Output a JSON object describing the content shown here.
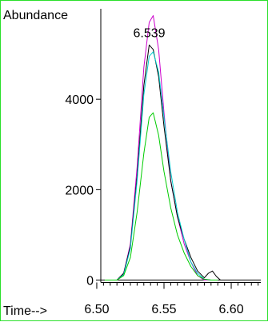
{
  "chart_data": {
    "type": "line",
    "ylabel": "Abundance",
    "xlabel": "Time-->",
    "xlim": [
      6.503,
      6.622
    ],
    "ylim": [
      -150,
      6000
    ],
    "yticks": [
      0,
      2000,
      4000
    ],
    "ytick_labels": [
      "0",
      "2000",
      "4000"
    ],
    "xticks": [
      6.5,
      6.55,
      6.6
    ],
    "xtick_labels": [
      "6.50",
      "6.55",
      "6.60"
    ],
    "x_minor_step": 0.005,
    "grid": false,
    "annotations": [
      {
        "text": "6.539",
        "x": 6.539,
        "y": 5300
      }
    ],
    "series": [
      {
        "color": "#cc00cc",
        "x": [
          6.506,
          6.515,
          6.52,
          6.525,
          6.53,
          6.535,
          6.539,
          6.542,
          6.546,
          6.55,
          6.555,
          6.56,
          6.565,
          6.57,
          6.575,
          6.58,
          6.585,
          6.59
        ],
        "y": [
          0,
          0,
          150,
          800,
          2500,
          4700,
          5700,
          5850,
          5100,
          3700,
          2200,
          1400,
          800,
          400,
          100,
          0,
          0,
          0
        ]
      },
      {
        "color": "#000000",
        "x": [
          6.506,
          6.515,
          6.52,
          6.525,
          6.53,
          6.535,
          6.539,
          6.542,
          6.546,
          6.55,
          6.555,
          6.56,
          6.565,
          6.57,
          6.575,
          6.58,
          6.583,
          6.586,
          6.589,
          6.592,
          6.6
        ],
        "y": [
          0,
          0,
          150,
          750,
          2300,
          4300,
          5200,
          5100,
          4500,
          3400,
          2200,
          1400,
          900,
          500,
          200,
          50,
          150,
          200,
          80,
          0,
          0
        ]
      },
      {
        "color": "#00cccc",
        "x": [
          6.506,
          6.515,
          6.52,
          6.525,
          6.53,
          6.535,
          6.539,
          6.542,
          6.546,
          6.55,
          6.555,
          6.56,
          6.565,
          6.57,
          6.575,
          6.58,
          6.585,
          6.59
        ],
        "y": [
          0,
          0,
          120,
          700,
          2200,
          4100,
          4950,
          5050,
          4600,
          3600,
          2400,
          1500,
          900,
          400,
          150,
          20,
          0,
          0
        ]
      },
      {
        "color": "#00cc00",
        "x": [
          6.506,
          6.515,
          6.52,
          6.525,
          6.53,
          6.535,
          6.539,
          6.542,
          6.546,
          6.55,
          6.555,
          6.56,
          6.565,
          6.57,
          6.575,
          6.58,
          6.585,
          6.59
        ],
        "y": [
          0,
          0,
          100,
          500,
          1500,
          2800,
          3600,
          3700,
          3200,
          2400,
          1600,
          1000,
          600,
          300,
          100,
          20,
          0,
          0
        ]
      }
    ]
  }
}
